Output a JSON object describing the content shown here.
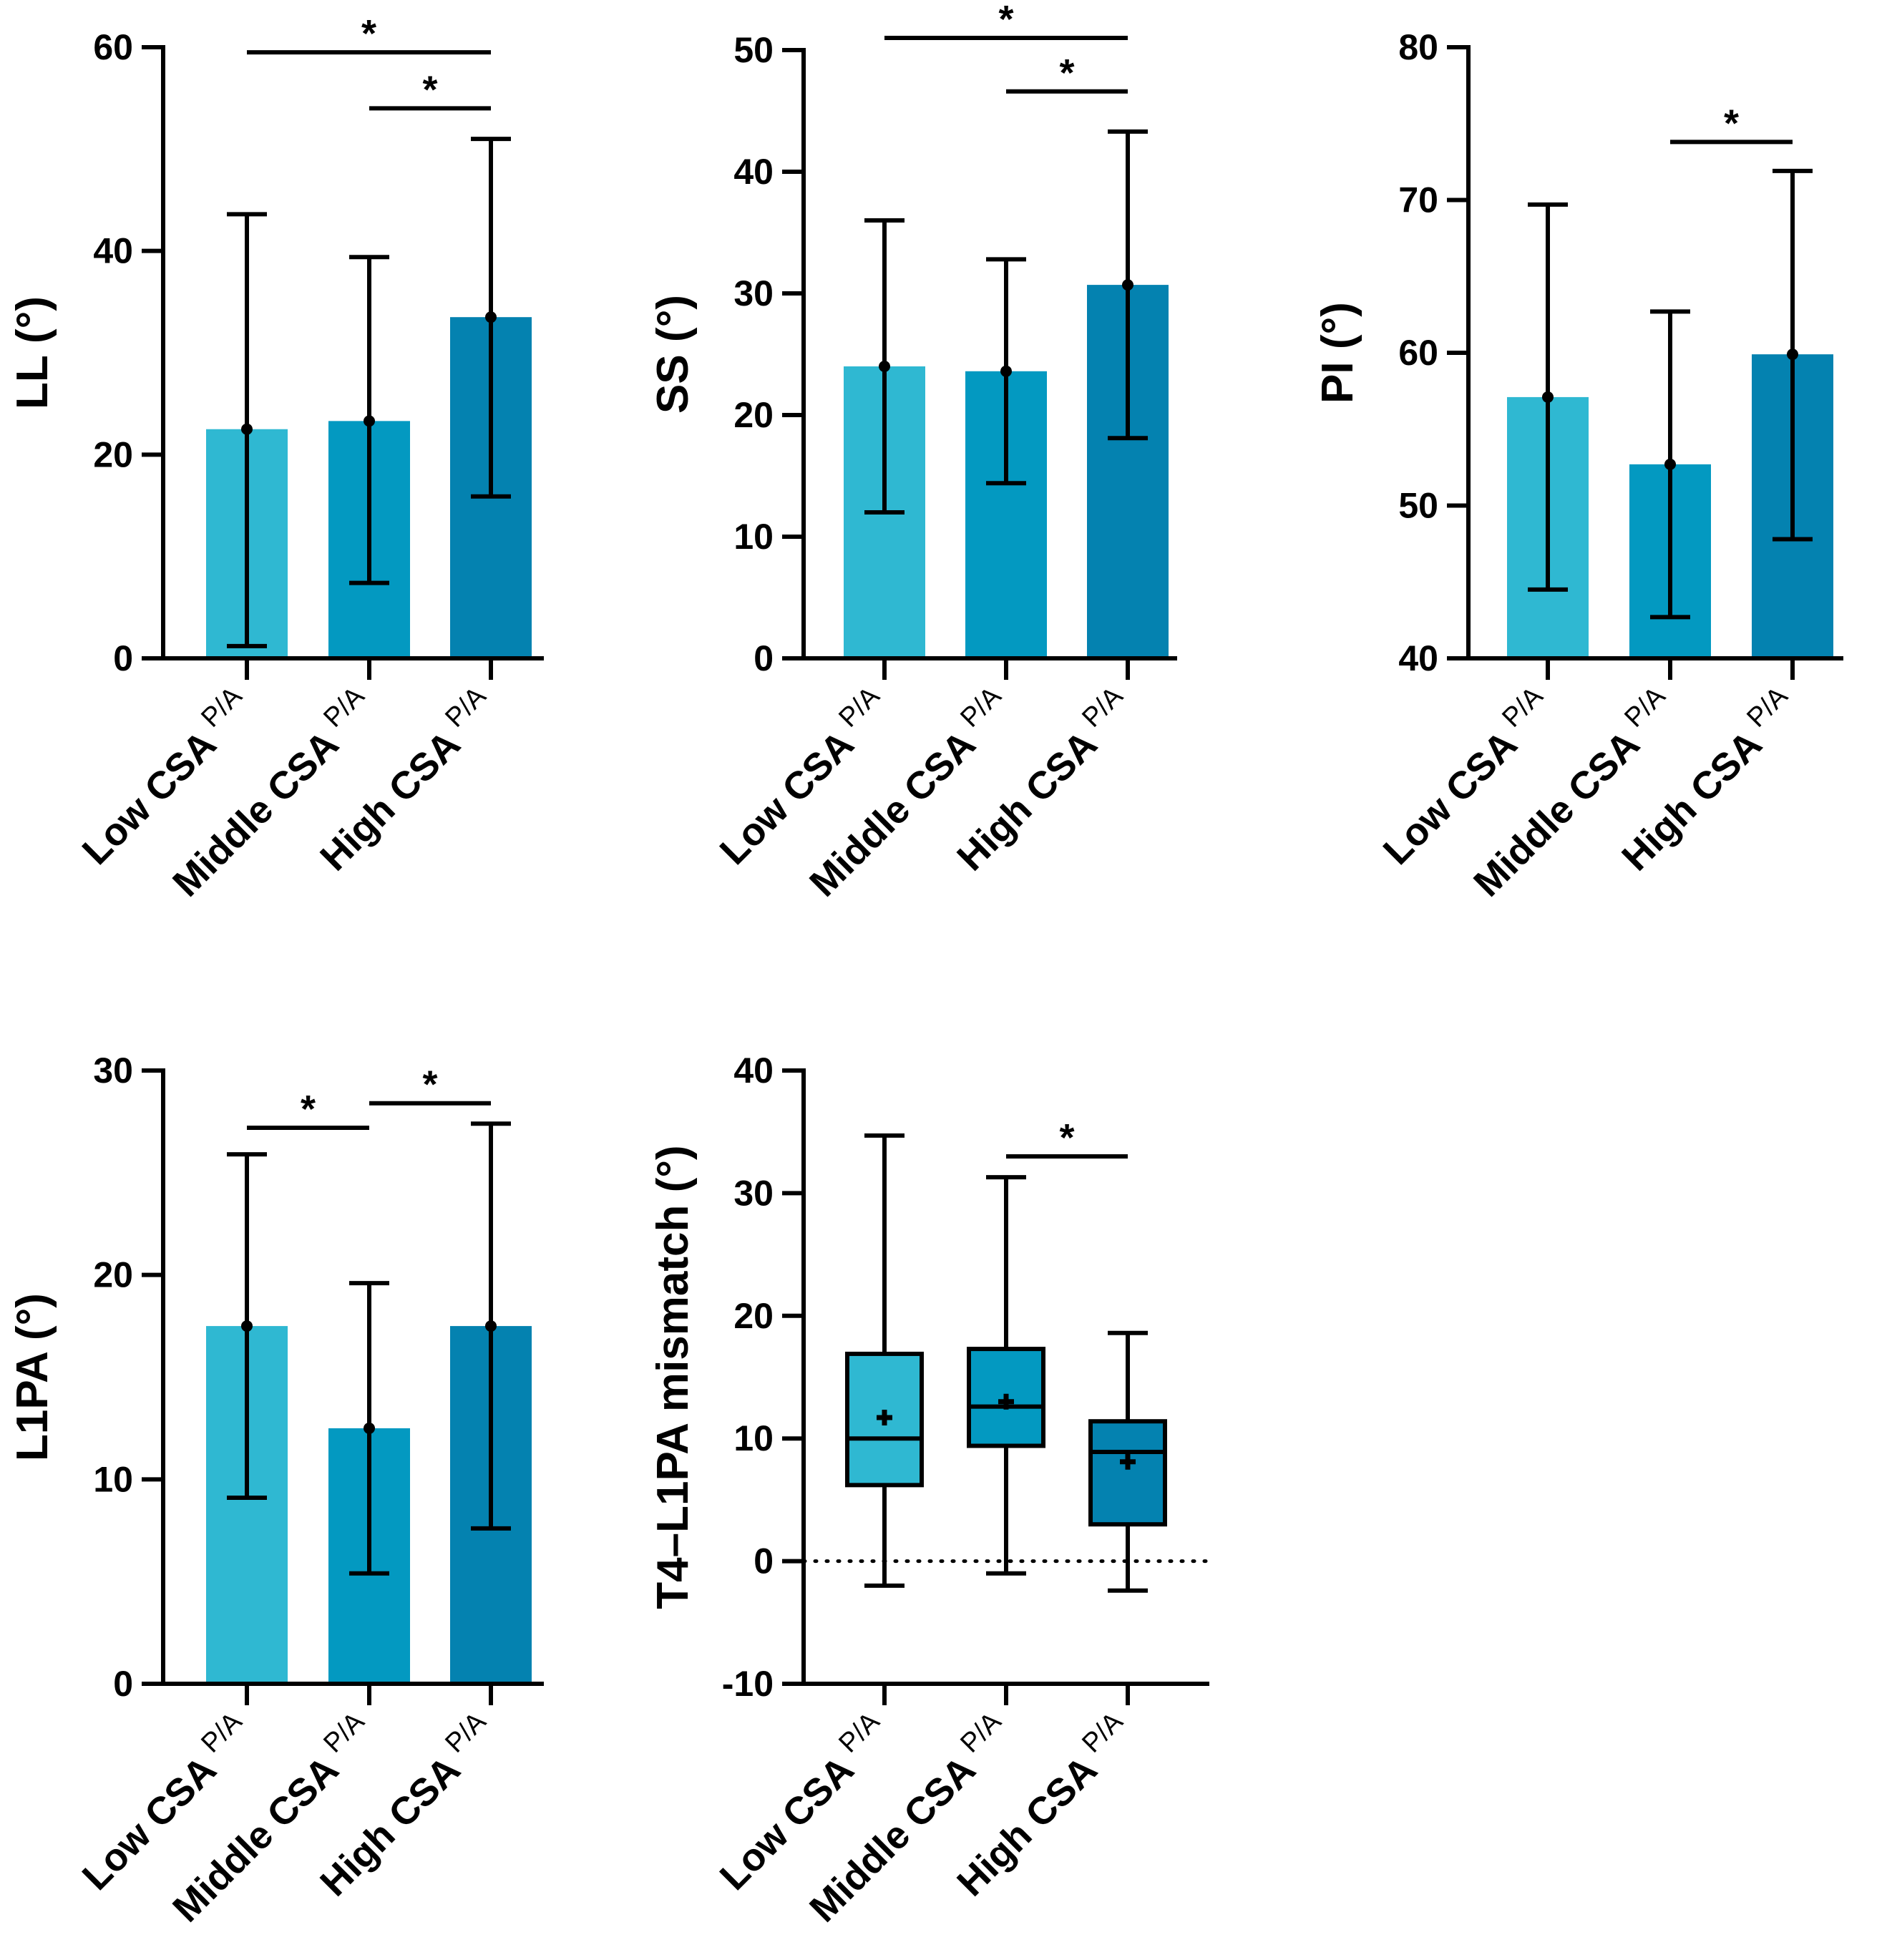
{
  "colors": {
    "low": "#2FB8D2",
    "middle": "#0399C1",
    "high": "#0482B0",
    "ink": "#000000"
  },
  "chart_data": [
    {
      "id": "LL",
      "type": "bar",
      "ylabel": "LL (°)",
      "ylim": [
        0,
        60
      ],
      "yticks": [
        0,
        20,
        40,
        60
      ],
      "ytick_labels": [
        "0",
        "20",
        "40",
        "60"
      ],
      "categories": [
        "Low CSA",
        "Middle CSA",
        "High CSA"
      ],
      "category_superscript": "P/A",
      "values": [
        22.5,
        23.3,
        33.5
      ],
      "error_low": [
        1.2,
        7.4,
        15.9
      ],
      "error_high": [
        43.6,
        39.4,
        51.0
      ],
      "significance": [
        {
          "from": 0,
          "to": 2,
          "y": 59.5,
          "label": "*"
        },
        {
          "from": 1,
          "to": 2,
          "y": 54.0,
          "label": "*"
        }
      ]
    },
    {
      "id": "SS",
      "type": "bar",
      "ylabel": "SS (°)",
      "ylim": [
        0,
        50
      ],
      "yticks": [
        0,
        10,
        20,
        30,
        40,
        50
      ],
      "ytick_labels": [
        "0",
        "10",
        "20",
        "30",
        "40",
        "50"
      ],
      "categories": [
        "Low CSA",
        "Middle CSA",
        "High CSA"
      ],
      "category_superscript": "P/A",
      "values": [
        24.0,
        23.6,
        30.7
      ],
      "error_low": [
        12.0,
        14.4,
        18.1
      ],
      "error_high": [
        36.0,
        32.8,
        43.3
      ],
      "significance": [
        {
          "from": 0,
          "to": 2,
          "y": 51.0,
          "label": "*"
        },
        {
          "from": 1,
          "to": 2,
          "y": 46.6,
          "label": "*"
        }
      ]
    },
    {
      "id": "PI",
      "type": "bar",
      "ylabel": "PI (°)",
      "ylim": [
        40,
        80
      ],
      "yticks": [
        40,
        50,
        60,
        70,
        80
      ],
      "ytick_labels": [
        "40",
        "50",
        "60",
        "70",
        "80"
      ],
      "categories": [
        "Low CSA",
        "Middle CSA",
        "High CSA"
      ],
      "category_superscript": "P/A",
      "values": [
        57.1,
        52.7,
        59.9
      ],
      "error_low": [
        44.5,
        42.7,
        47.8
      ],
      "error_high": [
        69.7,
        62.7,
        71.9
      ],
      "significance": [
        {
          "from": 1,
          "to": 2,
          "y": 73.8,
          "label": "*"
        }
      ]
    },
    {
      "id": "L1PA",
      "type": "bar",
      "ylabel": "L1PA (°)",
      "ylim": [
        0,
        30
      ],
      "yticks": [
        0,
        10,
        20,
        30
      ],
      "ytick_labels": [
        "0",
        "10",
        "20",
        "30"
      ],
      "categories": [
        "Low CSA",
        "Middle CSA",
        "High CSA"
      ],
      "category_superscript": "P/A",
      "values": [
        17.5,
        12.5,
        17.5
      ],
      "error_low": [
        9.1,
        5.4,
        7.6
      ],
      "error_high": [
        25.9,
        19.6,
        27.4
      ],
      "significance": [
        {
          "from": 0,
          "to": 1,
          "y": 27.2,
          "label": "*"
        },
        {
          "from": 1,
          "to": 2,
          "y": 28.4,
          "label": "*"
        }
      ]
    },
    {
      "id": "T4L1PA",
      "type": "box",
      "ylabel": "T4–L1PA mismatch (°)",
      "ylim": [
        -10,
        40
      ],
      "yticks": [
        -10,
        0,
        10,
        20,
        30,
        40
      ],
      "ytick_labels": [
        "-10",
        "0",
        "10",
        "20",
        "30",
        "40"
      ],
      "categories": [
        "Low CSA",
        "Middle CSA",
        "High CSA"
      ],
      "category_superscript": "P/A",
      "boxes": [
        {
          "min": -2.0,
          "q1": 6.2,
          "median": 10.0,
          "q3": 16.9,
          "max": 34.7,
          "mean": 11.7
        },
        {
          "min": -1.0,
          "q1": 9.4,
          "median": 12.6,
          "q3": 17.3,
          "max": 31.3,
          "mean": 13.0
        },
        {
          "min": -2.4,
          "q1": 3.0,
          "median": 8.9,
          "q3": 11.4,
          "max": 18.6,
          "mean": 8.1
        }
      ],
      "reference_line": 0,
      "significance": [
        {
          "from": 1,
          "to": 2,
          "y": 33.0,
          "label": "*"
        }
      ]
    }
  ]
}
